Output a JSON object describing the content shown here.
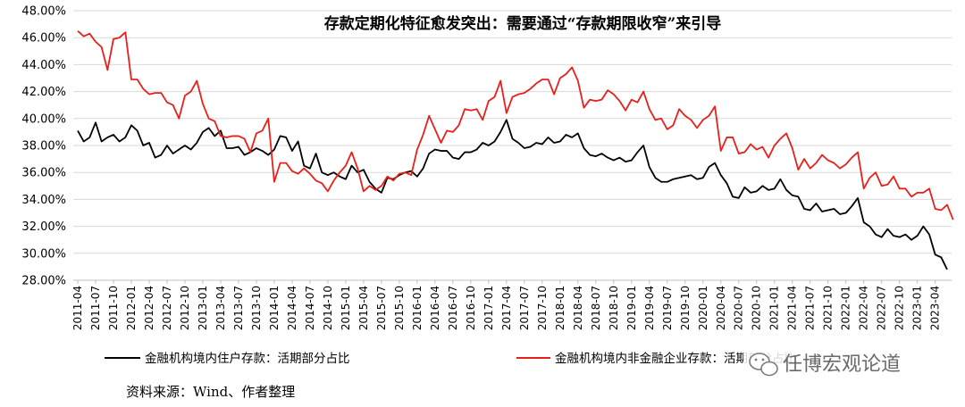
{
  "chart_data": {
    "type": "line",
    "title": "存款定期化特征愈发突出：需要通过“存款期限收窄”来引导",
    "xlabel": "",
    "ylabel": "",
    "ylim": [
      28,
      48
    ],
    "y_ticks": [
      "28.00%",
      "30.00%",
      "32.00%",
      "34.00%",
      "36.00%",
      "38.00%",
      "40.00%",
      "42.00%",
      "44.00%",
      "46.00%",
      "48.00%"
    ],
    "x_ticks": [
      "2011-04",
      "2011-07",
      "2011-10",
      "2012-01",
      "2012-04",
      "2012-07",
      "2012-10",
      "2013-01",
      "2013-04",
      "2013-07",
      "2013-10",
      "2014-01",
      "2014-04",
      "2014-07",
      "2014-10",
      "2015-01",
      "2015-04",
      "2015-07",
      "2015-10",
      "2016-01",
      "2016-04",
      "2016-07",
      "2016-10",
      "2017-01",
      "2017-04",
      "2017-07",
      "2017-10",
      "2018-01",
      "2018-04",
      "2018-07",
      "2018-10",
      "2019-01",
      "2019-04",
      "2019-07",
      "2019-10",
      "2020-01",
      "2020-04",
      "2020-07",
      "2020-10",
      "2021-01",
      "2021-04",
      "2021-07",
      "2021-10",
      "2022-01",
      "2022-04",
      "2022-07",
      "2022-10",
      "2023-01",
      "2023-04"
    ],
    "x_start": "2011-04",
    "grid": true,
    "legend_position": "bottom",
    "series": [
      {
        "name": "金融机构境内住户存款：活期部分占比",
        "color": "#000000",
        "values": [
          39.1,
          38.3,
          38.6,
          39.7,
          38.3,
          38.6,
          38.8,
          38.3,
          38.6,
          39.5,
          39.1,
          38.0,
          38.2,
          37.1,
          37.3,
          38.0,
          37.4,
          37.7,
          38.0,
          37.7,
          38.2,
          39.0,
          39.3,
          38.7,
          39.1,
          37.8,
          37.8,
          37.9,
          37.3,
          37.5,
          37.8,
          37.6,
          37.3,
          37.7,
          38.7,
          38.6,
          37.6,
          38.3,
          36.5,
          36.3,
          37.4,
          36.0,
          35.8,
          36.0,
          35.7,
          35.5,
          36.5,
          36.0,
          36.2,
          35.3,
          34.8,
          34.5,
          35.6,
          35.5,
          35.8,
          36.0,
          36.1,
          35.7,
          36.3,
          37.4,
          37.7,
          37.6,
          37.6,
          37.1,
          37.0,
          37.5,
          37.5,
          37.7,
          38.2,
          38.0,
          38.3,
          39.0,
          39.9,
          38.5,
          38.2,
          37.8,
          37.9,
          38.2,
          38.1,
          38.6,
          38.2,
          38.3,
          38.8,
          38.6,
          38.9,
          37.8,
          37.3,
          37.2,
          37.4,
          37.1,
          36.9,
          37.1,
          36.8,
          36.9,
          37.5,
          38.0,
          36.4,
          35.6,
          35.3,
          35.3,
          35.5,
          35.6,
          35.7,
          35.8,
          35.5,
          35.6,
          36.4,
          36.7,
          35.8,
          35.2,
          34.2,
          34.1,
          34.9,
          34.5,
          34.6,
          35.0,
          34.7,
          34.8,
          35.5,
          34.7,
          34.3,
          34.2,
          33.3,
          33.2,
          33.7,
          33.1,
          33.2,
          33.3,
          32.9,
          33.0,
          33.5,
          34.1,
          32.3,
          32.0,
          31.4,
          31.2,
          31.8,
          31.3,
          31.2,
          31.4,
          31.0,
          31.3,
          32.0,
          31.4,
          29.9,
          29.7,
          28.8
        ]
      },
      {
        "name": "金融机构境内非金融企业存款：活期部分占比",
        "color": "#e8201a",
        "values": [
          46.5,
          46.1,
          46.3,
          45.7,
          45.3,
          43.6,
          45.9,
          46.0,
          46.4,
          42.9,
          42.9,
          42.2,
          41.8,
          41.9,
          41.9,
          41.2,
          41.0,
          40.0,
          41.7,
          42.0,
          42.8,
          41.1,
          40.0,
          39.8,
          38.7,
          38.6,
          38.7,
          38.7,
          38.5,
          37.5,
          38.9,
          39.1,
          40.0,
          35.3,
          36.7,
          36.7,
          36.1,
          35.9,
          36.3,
          35.9,
          35.4,
          35.2,
          34.6,
          35.4,
          36.0,
          36.5,
          37.5,
          36.3,
          34.6,
          35.0,
          34.7,
          35.0,
          35.7,
          35.4,
          35.9,
          36.0,
          35.8,
          37.7,
          38.8,
          40.2,
          39.2,
          38.2,
          39.1,
          39.0,
          39.5,
          40.7,
          40.6,
          40.7,
          39.9,
          41.3,
          41.6,
          42.8,
          40.4,
          41.6,
          41.8,
          41.9,
          42.2,
          42.6,
          42.9,
          42.9,
          41.8,
          43.0,
          43.3,
          43.8,
          42.8,
          40.8,
          41.4,
          41.3,
          41.4,
          42.1,
          41.8,
          41.3,
          40.6,
          41.4,
          41.2,
          42.0,
          40.7,
          39.9,
          40.0,
          39.2,
          39.5,
          40.7,
          40.2,
          39.9,
          39.3,
          39.9,
          40.2,
          40.9,
          37.6,
          38.6,
          38.6,
          37.4,
          37.5,
          38.1,
          37.7,
          37.9,
          37.1,
          38.0,
          38.5,
          38.9,
          37.8,
          36.2,
          37.0,
          36.3,
          36.7,
          37.3,
          36.9,
          36.7,
          36.3,
          36.6,
          37.1,
          37.5,
          34.8,
          35.6,
          36.0,
          35.0,
          35.1,
          35.7,
          34.8,
          34.8,
          34.2,
          34.5,
          34.5,
          34.8,
          33.3,
          33.2,
          33.6,
          32.5
        ]
      }
    ]
  },
  "legend": {
    "items": [
      {
        "label": "金融机构境内住户存款：活期部分占比",
        "color": "#000000"
      },
      {
        "label": "金融机构境内非金融企业存款：活期部分占比",
        "color": "#e8201a"
      }
    ]
  },
  "source": "资料来源：Wind、作者整理",
  "watermark": {
    "text": "任博宏观论道",
    "icon": "wechat-icon"
  }
}
